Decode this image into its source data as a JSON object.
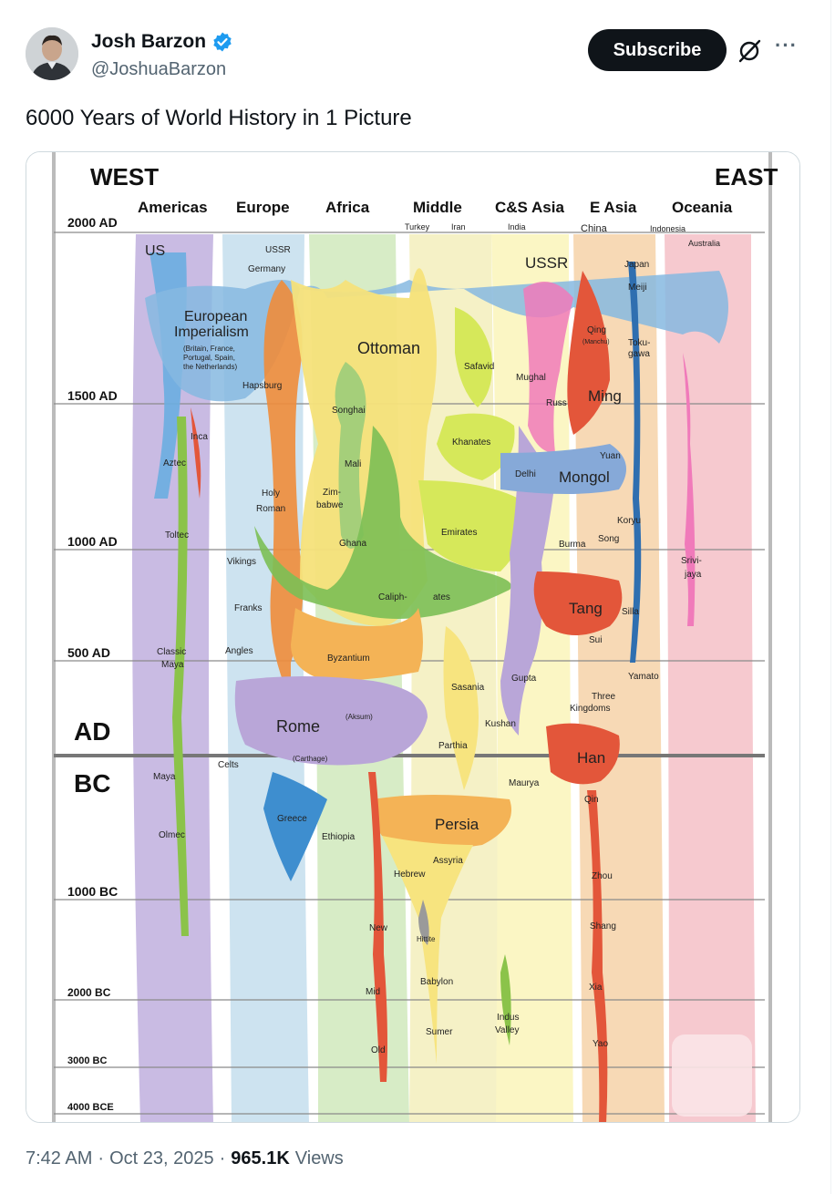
{
  "author": {
    "name": "Josh Barzon",
    "handle": "@JoshuaBarzon"
  },
  "subscribe_label": "Subscribe",
  "tweet": {
    "text": "6000 Years of World History in 1 Picture",
    "time": "7:42 AM",
    "date": "Oct 23, 2025",
    "views": "965.1K",
    "views_label": "Views"
  },
  "chart": {
    "west": "WEST",
    "east": "EAST",
    "regions": [
      "Americas",
      "Europe",
      "Africa",
      "Middle",
      "C&S Asia",
      "E Asia",
      "Oceania"
    ],
    "time_labels": [
      "2000 AD",
      "1500 AD",
      "1000 AD",
      "500 AD",
      "AD",
      "BC",
      "1000 BC",
      "2000 BC",
      "3000 BC",
      "4000 BCE"
    ],
    "labels": {
      "us": "US",
      "ussr_small": "USSR",
      "germany": "Germany",
      "turkey": "Turkey",
      "iran": "Iran",
      "india": "India",
      "china": "China",
      "indonesia": "Indonesia",
      "australia": "Australia",
      "ussr": "USSR",
      "japan": "Japan",
      "meiji": "Meiji",
      "euro1": "European",
      "euro2": "Imperialism",
      "euro3": "(Britain, France,",
      "euro4": "Portugal, Spain,",
      "euro5": "the Netherlands)",
      "ottoman": "Ottoman",
      "safavid": "Safavid",
      "mughal": "Mughal",
      "qing": "Qing",
      "manchu": "(Manchu)",
      "toku": "Toku-",
      "gawa": "gawa",
      "hapsburg": "Hapsburg",
      "songhai": "Songhai",
      "russ": "Russ",
      "ming": "Ming",
      "inca": "Inca",
      "aztec": "Aztec",
      "khanates": "Khanates",
      "yuan": "Yuan",
      "mali": "Mali",
      "delhi": "Delhi",
      "mongol": "Mongol",
      "holy": "Holy",
      "roman": "Roman",
      "zim": "Zim-",
      "babwe": "babwe",
      "koryu": "Koryu",
      "emirates": "Emirates",
      "burma": "Burma",
      "song": "Song",
      "toltec": "Toltec",
      "ghana": "Ghana",
      "vikings": "Vikings",
      "srivi": "Srivi-",
      "jaya": "jaya",
      "caliph": "Caliph-",
      "ates": "ates",
      "franks": "Franks",
      "tang": "Tang",
      "silla": "Silla",
      "sui": "Sui",
      "classic": "Classic",
      "maya_c": "Maya",
      "angles": "Angles",
      "byzantium": "Byzantium",
      "gupta": "Gupta",
      "yamato": "Yamato",
      "sasania": "Sasania",
      "three": "Three",
      "kingdoms": "Kingdoms",
      "aksum": "(Aksum)",
      "rome": "Rome",
      "kushan": "Kushan",
      "carthage": "(Carthage)",
      "parthia": "Parthia",
      "han": "Han",
      "celts": "Celts",
      "maya": "Maya",
      "maurya": "Maurya",
      "qin": "Qin",
      "greece": "Greece",
      "persia": "Persia",
      "olmec": "Olmec",
      "ethiopia": "Ethiopia",
      "assyria": "Assyria",
      "hebrew": "Hebrew",
      "zhou": "Zhou",
      "hittite": "Hittite",
      "shang": "Shang",
      "new": "New",
      "babylon": "Babylon",
      "mid": "Mid",
      "xia": "Xia",
      "indus": "Indus",
      "valley": "Valley",
      "sumer": "Sumer",
      "old": "Old",
      "yao": "Yao"
    },
    "colors": {
      "background": "#ffffff",
      "ink": "#111111",
      "blue": "#6aaee0",
      "orange": "#f2a649",
      "yellow": "#f6e27a",
      "green": "#8bc34a",
      "lime": "#d6e85a",
      "purple": "#b9a6d8",
      "red": "#e3563a",
      "pink": "#f0a8c8"
    }
  }
}
